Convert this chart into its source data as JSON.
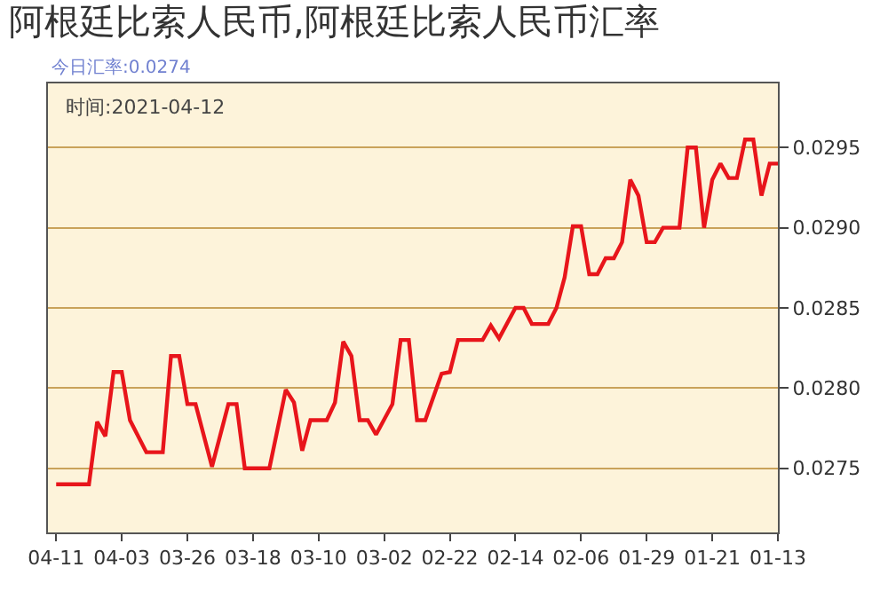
{
  "chart_data": {
    "type": "line",
    "title": "阿根廷比索人民币,阿根廷比索人民币汇率",
    "annotations": [
      "今日汇率:0.0274",
      "时间:2021-04-12"
    ],
    "x": [
      "--04-11",
      "--04-07",
      "--04-06",
      "--04-05",
      "--04-04",
      "--04-03",
      "--04-02",
      "--03-31",
      "--03-29",
      "--03-28",
      "--03-27",
      "--03-26",
      "--03-25",
      "--03-23",
      "--03-21",
      "--03-20",
      "--03-19",
      "--03-16",
      "--03-14",
      "--03-13",
      "--03-12",
      "--03-11",
      "--03-09",
      "--03-08",
      "--03-07",
      "--03-06",
      "--03-05",
      "--03-04",
      "--03-03",
      "--03-01",
      "--02-28",
      "--02-27",
      "--02-26",
      "--02-25",
      "--02-23",
      "--02-22",
      "--02-21",
      "--02-18",
      "--02-17",
      "--02-16",
      "--02-14",
      "--02-13",
      "--02-12",
      "--02-10",
      "--02-09",
      "--02-08",
      "--02-07",
      "--02-06",
      "--02-05",
      "--02-04",
      "--02-03",
      "--02-02",
      "--02-01",
      "--01-31",
      "--01-30",
      "--01-29",
      "--01-28",
      "--01-27",
      "--01-25",
      "--01-24",
      "--01-23",
      "--01-22",
      "--01-21",
      "--01-20",
      "--01-19",
      "--01-18",
      "--01-17",
      "--01-16",
      "--01-15",
      "--01-14",
      "--01-13"
    ],
    "series": [
      {
        "color": "#e8151b",
        "values": [
          0.0274,
          0.0274,
          0.02779,
          0.0277,
          0.0281,
          0.0281,
          0.0278,
          0.0276,
          0.0276,
          0.0282,
          0.0282,
          0.0279,
          0.0279,
          0.02751,
          0.0279,
          0.0279,
          0.0275,
          0.0275,
          0.02799,
          0.02791,
          0.02761,
          0.0278,
          0.0278,
          0.02791,
          0.02829,
          0.0282,
          0.0278,
          0.0278,
          0.02771,
          0.0279,
          0.0283,
          0.0283,
          0.0278,
          0.0278,
          0.02809,
          0.0281,
          0.0283,
          0.0283,
          0.02839,
          0.02831,
          0.0285,
          0.0285,
          0.0284,
          0.0284,
          0.0285,
          0.02869,
          0.02901,
          0.02901,
          0.02871,
          0.02871,
          0.02881,
          0.02881,
          0.02891,
          0.0293,
          0.0292,
          0.02891,
          0.02891,
          0.029,
          0.029,
          0.0295,
          0.0295,
          0.029,
          0.0293,
          0.0294,
          0.02931,
          0.02931,
          0.02955,
          0.02955,
          0.0292,
          0.0294,
          0.0294
        ]
      }
    ],
    "xlim": [
      "--04-12",
      "--01-13"
    ],
    "xticks": [
      {
        "value": "--04-11",
        "label": "04-11"
      },
      {
        "value": "--04-03",
        "label": "04-03"
      },
      {
        "value": "--03-26",
        "label": "03-26"
      },
      {
        "value": "--03-18",
        "label": "03-18"
      },
      {
        "value": "--03-10",
        "label": "03-10"
      },
      {
        "value": "--03-02",
        "label": "03-02"
      },
      {
        "value": "--02-22",
        "label": "02-22"
      },
      {
        "value": "--02-14",
        "label": "02-14"
      },
      {
        "value": "--02-06",
        "label": "02-06"
      },
      {
        "value": "--01-29",
        "label": "01-29"
      },
      {
        "value": "--01-21",
        "label": "01-21"
      },
      {
        "value": "--01-13",
        "label": "01-13"
      }
    ],
    "ylim": [
      0.0271,
      0.0299
    ],
    "yticks": [
      0.0275,
      {
        "value": 0.028,
        "label": "0.0280"
      },
      0.0285,
      {
        "value": 0.029,
        "label": "0.0290"
      },
      0.0295
    ],
    "grid": "y",
    "marker": "none",
    "line_style": "solid"
  }
}
